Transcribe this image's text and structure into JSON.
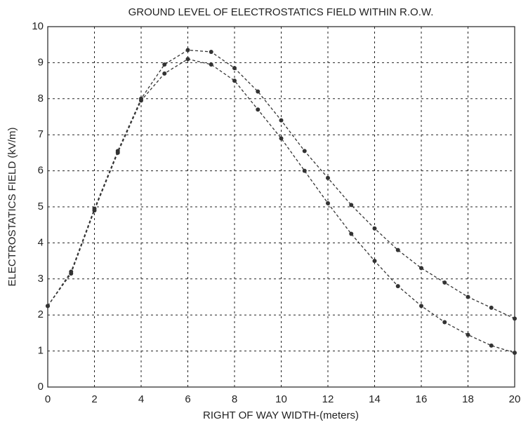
{
  "chart_data": {
    "type": "line",
    "title": "GROUND LEVEL OF ELECTROSTATICS FIELD WITHIN R.O.W.",
    "xlabel": "RIGHT OF WAY WIDTH-(meters)",
    "ylabel": "ELECTROSTATICS FIELD (kV/m)",
    "x": [
      0,
      1,
      2,
      3,
      4,
      5,
      6,
      7,
      8,
      9,
      10,
      11,
      12,
      13,
      14,
      15,
      16,
      17,
      18,
      19,
      20
    ],
    "series": [
      {
        "color": "#333333",
        "values": [
          2.25,
          3.2,
          4.95,
          6.55,
          8.0,
          8.95,
          9.35,
          9.3,
          8.85,
          8.2,
          7.4,
          6.55,
          5.8,
          5.05,
          4.4,
          3.8,
          3.3,
          2.9,
          2.5,
          2.2,
          1.9
        ]
      },
      {
        "color": "#333333",
        "values": [
          2.25,
          3.15,
          4.9,
          6.5,
          7.95,
          8.7,
          9.1,
          8.95,
          8.5,
          7.7,
          6.9,
          6.0,
          5.1,
          4.25,
          3.5,
          2.8,
          2.25,
          1.8,
          1.45,
          1.15,
          0.95
        ]
      }
    ],
    "xlim": [
      0,
      20
    ],
    "xticks": [
      0,
      2,
      4,
      6,
      8,
      10,
      12,
      14,
      16,
      18,
      20
    ],
    "ylim": [
      0,
      10
    ],
    "yticks": [
      0,
      1,
      2,
      3,
      4,
      5,
      6,
      7,
      8,
      9,
      10
    ],
    "grid": true
  }
}
